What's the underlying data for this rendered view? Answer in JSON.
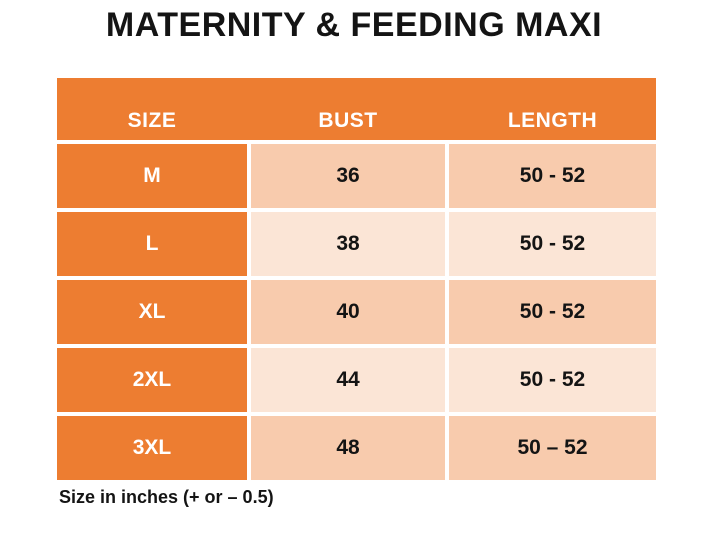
{
  "title": "MATERNITY & FEEDING MAXI",
  "chart_data": {
    "type": "table",
    "title": "MATERNITY & FEEDING MAXI",
    "columns": [
      "SIZE",
      "BUST",
      "LENGTH"
    ],
    "rows": [
      [
        "M",
        "36",
        "50 - 52"
      ],
      [
        "L",
        "38",
        "50 - 52"
      ],
      [
        "XL",
        "40",
        "50 - 52"
      ],
      [
        "2XL",
        "44",
        "50 - 52"
      ],
      [
        "3XL",
        "48",
        "50 – 52"
      ]
    ],
    "note": "Size in inches (+ or – 0.5)"
  },
  "colors": {
    "header_bg": "#ED7D31",
    "size_column_bg": "#ED7D31",
    "band_dark": "#F8CBAD",
    "band_light": "#FBE5D6",
    "header_text": "#FFFFFF",
    "body_text": "#141414",
    "grid_line": "#FFFFFF",
    "canvas_bg": "#FFFFFF"
  }
}
